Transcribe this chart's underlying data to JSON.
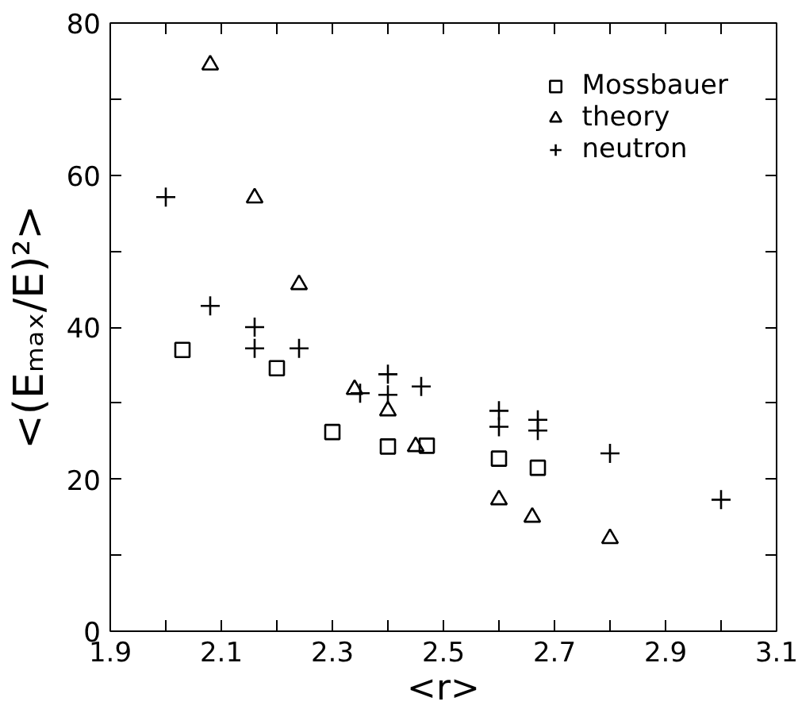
{
  "chart_data": {
    "type": "scatter",
    "xlabel": "<r>",
    "ylabel": "<(Eₘₐₓ/E)²>",
    "xlim": [
      1.9,
      3.1
    ],
    "ylim": [
      0,
      80
    ],
    "xticks": [
      1.9,
      {
        "value": 2.0,
        "label": null
      },
      2.1,
      {
        "value": 2.2,
        "label": null
      },
      2.3,
      {
        "value": 2.4,
        "label": null
      },
      2.5,
      {
        "value": 2.6,
        "label": null
      },
      2.7,
      {
        "value": 2.8,
        "label": null
      },
      2.9,
      {
        "value": 3.0,
        "label": null
      },
      3.1
    ],
    "yticks": [
      0,
      {
        "value": 10,
        "label": null
      },
      20,
      {
        "value": 30,
        "label": null
      },
      40,
      {
        "value": 50,
        "label": null
      },
      60,
      {
        "value": 70,
        "label": null
      },
      80
    ],
    "grid": false,
    "legend": "top right",
    "series": [
      {
        "name": "Mossbauer",
        "color": "#000000",
        "marker": "square",
        "x": [
          2.03,
          2.2,
          2.3,
          2.4,
          2.47,
          2.6,
          2.67
        ],
        "values": [
          37.0,
          34.6,
          26.2,
          24.3,
          24.4,
          22.7,
          21.5
        ]
      },
      {
        "name": "theory",
        "color": "#000000",
        "marker": "triangle",
        "x": [
          2.08,
          2.16,
          2.24,
          2.34,
          2.4,
          2.45,
          2.6,
          2.66,
          2.8
        ],
        "values": [
          74.5,
          57.0,
          45.6,
          31.8,
          29.0,
          24.3,
          17.3,
          15.0,
          12.2
        ]
      },
      {
        "name": "neutron",
        "color": "#000000",
        "marker": "cross",
        "x": [
          2.0,
          2.08,
          2.16,
          2.16,
          2.24,
          2.35,
          2.4,
          2.4,
          2.46,
          2.6,
          2.6,
          2.67,
          2.67,
          2.8,
          3.0
        ],
        "values": [
          57.1,
          42.8,
          40.0,
          37.2,
          37.2,
          31.3,
          33.8,
          31.1,
          32.2,
          29.0,
          26.9,
          27.8,
          26.4,
          23.4,
          17.3
        ]
      }
    ]
  }
}
